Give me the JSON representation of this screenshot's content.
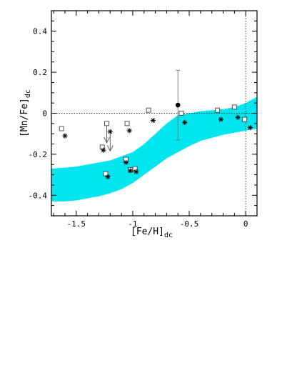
{
  "chart_data": {
    "type": "scatter",
    "title": "",
    "xlabel": "[Fe/H]",
    "xlabel_sub": "dc",
    "ylabel": "[Mn/Fe]",
    "ylabel_sub": "dc",
    "xlim": [
      -1.72,
      0.1
    ],
    "ylim": [
      -0.5,
      0.5
    ],
    "x_ticks": [
      -1.5,
      -1,
      -0.5,
      0
    ],
    "x_tick_labels": [
      "-1.5",
      "-1",
      "-0.5",
      "0"
    ],
    "y_ticks": [
      -0.4,
      -0.2,
      0,
      0.2,
      0.4
    ],
    "y_tick_labels": [
      "-0.4",
      "-0.2",
      "0",
      "0.2",
      "0.4"
    ],
    "grid": false,
    "reference_lines": {
      "y": 0,
      "x": 0,
      "style": "dotted"
    },
    "band": {
      "color": "#00e5ee",
      "x": [
        -1.72,
        -1.6,
        -1.5,
        -1.4,
        -1.3,
        -1.2,
        -1.1,
        -1.0,
        -0.9,
        -0.8,
        -0.7,
        -0.6,
        -0.5,
        -0.4,
        -0.3,
        -0.2,
        -0.1,
        0.0,
        0.1
      ],
      "upper": [
        -0.27,
        -0.265,
        -0.26,
        -0.25,
        -0.24,
        -0.23,
        -0.21,
        -0.19,
        -0.15,
        -0.1,
        -0.05,
        -0.01,
        0.0,
        0.01,
        0.015,
        0.02,
        0.03,
        0.05,
        0.08
      ],
      "lower": [
        -0.43,
        -0.43,
        -0.425,
        -0.415,
        -0.405,
        -0.39,
        -0.37,
        -0.34,
        -0.3,
        -0.26,
        -0.22,
        -0.19,
        -0.16,
        -0.135,
        -0.12,
        -0.105,
        -0.095,
        -0.085,
        -0.075
      ]
    },
    "series": [
      {
        "marker": "square",
        "points": [
          [
            -1.63,
            -0.075
          ],
          [
            -1.27,
            -0.165
          ],
          [
            -1.24,
            -0.295
          ],
          [
            -1.23,
            -0.05
          ],
          [
            -1.06,
            -0.225
          ],
          [
            -1.05,
            -0.05
          ],
          [
            -1.02,
            -0.275
          ],
          [
            -0.98,
            -0.27
          ],
          [
            -0.86,
            0.015
          ],
          [
            -0.57,
            0.0
          ],
          [
            -0.25,
            0.015
          ],
          [
            -0.1,
            0.03
          ],
          [
            -0.01,
            -0.03
          ]
        ]
      },
      {
        "marker": "asterisk",
        "points": [
          [
            -1.6,
            -0.11
          ],
          [
            -1.26,
            -0.18
          ],
          [
            -1.22,
            -0.31
          ],
          [
            -1.2,
            -0.09
          ],
          [
            -1.06,
            -0.24
          ],
          [
            -1.03,
            -0.085
          ],
          [
            -1.02,
            -0.28
          ],
          [
            -0.97,
            -0.285
          ],
          [
            -0.82,
            -0.035
          ],
          [
            -0.54,
            -0.045
          ],
          [
            -0.22,
            -0.03
          ],
          [
            -0.07,
            -0.02
          ],
          [
            0.04,
            -0.07
          ]
        ]
      },
      {
        "marker": "filled-circle",
        "points": [
          [
            -0.6,
            0.04
          ]
        ],
        "error_low": [
          -0.13
        ],
        "error_high": [
          0.21
        ]
      }
    ],
    "upper_limits": [
      [
        -1.23,
        -0.05
      ],
      [
        -1.2,
        -0.09
      ]
    ]
  }
}
